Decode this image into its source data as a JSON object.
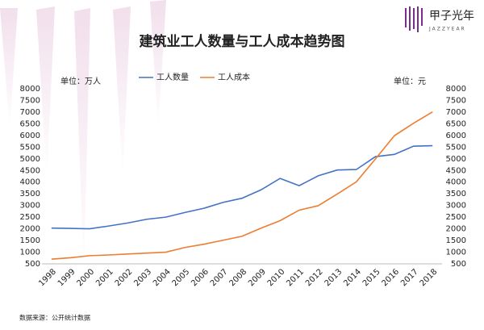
{
  "chart_data": {
    "type": "line",
    "title": "建筑业工人数量与工人成本趋势图",
    "categories": [
      "1998",
      "1999",
      "2000",
      "2001",
      "2002",
      "2003",
      "2004",
      "2005",
      "2006",
      "2007",
      "2008",
      "2009",
      "2010",
      "2011",
      "2012",
      "2013",
      "2014",
      "2015",
      "2016",
      "2017",
      "2018"
    ],
    "series": [
      {
        "name": "工人数量",
        "color": "#4472c4",
        "values": [
          2030,
          2020,
          2000,
          2120,
          2250,
          2410,
          2500,
          2700,
          2880,
          3130,
          3310,
          3670,
          4160,
          3850,
          4270,
          4520,
          4540,
          5090,
          5190,
          5540,
          5560
        ]
      },
      {
        "name": "工人成本",
        "color": "#ed7d31",
        "axis": "y2",
        "values": [
          700,
          760,
          850,
          880,
          920,
          960,
          1000,
          1200,
          1340,
          1510,
          1680,
          2030,
          2350,
          2800,
          2990,
          3490,
          4010,
          4990,
          5990,
          6520,
          7010
        ]
      }
    ],
    "ylim": [
      500,
      8000
    ],
    "yticks": [
      500,
      1000,
      1500,
      2000,
      2500,
      3000,
      3500,
      4000,
      4500,
      5000,
      5500,
      6000,
      6500,
      7000,
      7500,
      8000
    ],
    "y2lim": [
      500,
      8000
    ],
    "y2ticks": [
      500,
      1000,
      1500,
      2000,
      2500,
      3000,
      3500,
      4000,
      4500,
      5000,
      5500,
      6000,
      6500,
      7000,
      7500,
      8000
    ],
    "y_label": "单位：万人",
    "y2_label": "单位：元",
    "legend": "top",
    "grid": false
  },
  "source": "数据来源：公开统计数据",
  "logo": {
    "name": "甲子光年",
    "sub": "JAZZYEAR"
  }
}
